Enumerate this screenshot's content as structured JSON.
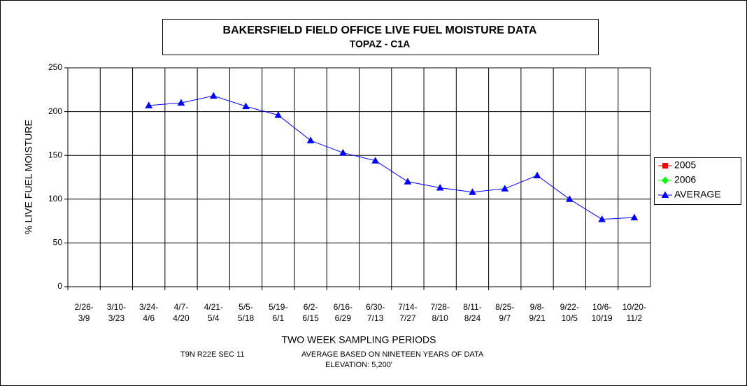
{
  "chart_data": {
    "type": "line",
    "title": "BAKERSFIELD FIELD OFFICE  LIVE FUEL MOISTURE DATA",
    "subtitle": "TOPAZ - C1A",
    "xlabel": "TWO WEEK SAMPLING PERIODS",
    "ylabel": "% LIVE FUEL MOISTURE",
    "notes": [
      "T9N R22E SEC 11",
      "AVERAGE BASED ON NINETEEN YEARS OF DATA",
      "ELEVATION: 5,200'"
    ],
    "categories": [
      "2/26-3/9",
      "3/10-3/23",
      "3/24-4/6",
      "4/7-4/20",
      "4/21-5/4",
      "5/5-5/18",
      "5/19-6/1",
      "6/2-6/15",
      "6/16-6/29",
      "6/30-7/13",
      "7/14-7/27",
      "7/28-8/10",
      "8/11-8/24",
      "8/25-9/7",
      "9/8-9/21",
      "9/22-10/5",
      "10/6-10/19",
      "10/20-11/2"
    ],
    "series": [
      {
        "name": "2005",
        "color": "#ff0000",
        "marker": "square",
        "values": [
          null,
          null,
          null,
          null,
          null,
          null,
          null,
          null,
          null,
          null,
          null,
          null,
          null,
          null,
          null,
          null,
          null,
          null
        ]
      },
      {
        "name": "2006",
        "color": "#00ff00",
        "marker": "diamond",
        "values": [
          null,
          null,
          null,
          null,
          null,
          null,
          null,
          null,
          null,
          null,
          null,
          null,
          null,
          null,
          null,
          null,
          null,
          null
        ]
      },
      {
        "name": "AVERAGE",
        "color": "#0000ff",
        "marker": "triangle",
        "values": [
          null,
          null,
          207,
          210,
          218,
          206,
          196,
          167,
          153,
          144,
          120,
          113,
          108,
          112,
          127,
          100,
          77,
          79
        ]
      }
    ],
    "ylim": [
      0,
      250
    ],
    "yticks": [
      0,
      50,
      100,
      150,
      200,
      250
    ],
    "grid": true,
    "legend": "right"
  }
}
